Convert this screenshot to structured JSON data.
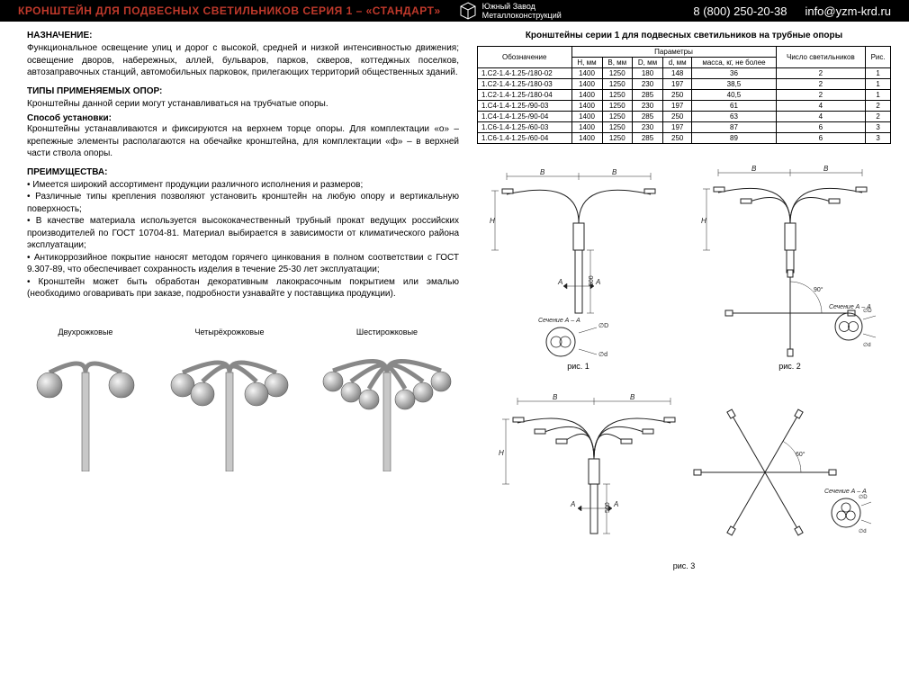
{
  "header": {
    "title": "КРОНШТЕЙН ДЛЯ ПОДВЕСНЫХ СВЕТИЛЬНИКОВ СЕРИЯ 1 – «СТАНДАРТ»",
    "company_line1": "Южный Завод",
    "company_line2": "Металлоконструкций",
    "phone": "8 (800) 250-20-38",
    "email": "info@yzm-krd.ru"
  },
  "purpose": {
    "heading": "НАЗНАЧЕНИЕ:",
    "text": "Функциональное освещение улиц и дорог с высокой, средней и низкой интенсивностью движения; освещение дворов, набережных, аллей, бульваров, парков, скверов, коттеджных поселков, автозаправочных станций, автомобильных парковок, прилегающих территорий общественных зданий."
  },
  "types": {
    "heading": "ТИПЫ ПРИМЕНЯЕМЫХ ОПОР:",
    "text": "Кронштейны данной серии могут устанавливаться на трубчатые опоры.",
    "sub_heading": "Способ установки:",
    "sub_text": "Кронштейны устанавливаются и фиксируются на верхнем торце опоры. Для комплектации «о» – крепежные элементы располагаются на обечайке кронштейна, для комплектации «ф» – в верхней части ствола опоры."
  },
  "advantages": {
    "heading": "ПРЕИМУЩЕСТВА:",
    "items": [
      "• Имеется широкий ассортимент продукции различного исполнения и размеров;",
      "• Различные типы крепления позволяют установить кронштейн на любую опору и вертикальную поверхность;",
      "• В качестве материала используется высококачественный трубный прокат ведущих российских производителей по ГОСТ 10704-81. Материал выбирается в зависимости от климатического района эксплуатации;",
      "• Антикоррозийное покрытие наносят методом горячего цинкования в полном соответствии с ГОСТ 9.307-89, что обеспечивает сохранность изделия в течение 25-30 лет эксплуатации;",
      "• Кронштейн может быть обработан декоративным лакокрасочным покрытием или эмалью (необходимо оговаривать при заказе, подробности узнавайте у поставщика продукции)."
    ]
  },
  "illustrations": {
    "labels": [
      "Двухрожковые",
      "Четырёхрожковые",
      "Шестирожковые"
    ]
  },
  "table": {
    "title": "Кронштейны серии 1 для подвесных светильников на трубные опоры",
    "headers": {
      "code": "Обозначение",
      "params": "Параметры",
      "h": "H, мм",
      "b": "B, мм",
      "D": "D, мм",
      "d": "d, мм",
      "mass": "масса, кг, не более",
      "lamps": "Число светильников",
      "fig": "Рис."
    },
    "rows": [
      [
        "1.C2-1.4-1.25-/180-02",
        "1400",
        "1250",
        "180",
        "148",
        "36",
        "2",
        "1"
      ],
      [
        "1.C2-1.4-1.25-/180-03",
        "1400",
        "1250",
        "230",
        "197",
        "38,5",
        "2",
        "1"
      ],
      [
        "1.C2-1.4-1.25-/180-04",
        "1400",
        "1250",
        "285",
        "250",
        "40,5",
        "2",
        "1"
      ],
      [
        "1.C4-1.4-1.25-/90-03",
        "1400",
        "1250",
        "230",
        "197",
        "61",
        "4",
        "2"
      ],
      [
        "1.C4-1.4-1.25-/90-04",
        "1400",
        "1250",
        "285",
        "250",
        "63",
        "4",
        "2"
      ],
      [
        "1.C6-1.4-1.25-/60-03",
        "1400",
        "1250",
        "230",
        "197",
        "87",
        "6",
        "3"
      ],
      [
        "1.C6-1.4-1.25-/60-04",
        "1400",
        "1250",
        "285",
        "250",
        "89",
        "6",
        "3"
      ]
    ]
  },
  "diagrams": {
    "fig1": "рис. 1",
    "fig2": "рис. 2",
    "fig3": "рис. 3",
    "section_label": "Сечение А – А",
    "dim_B": "B",
    "dim_H": "H",
    "dim_A": "A",
    "dim_500": "500",
    "dim_90": "90°",
    "dim_60": "60°",
    "dim_phi_D": "∅D",
    "dim_phi_d": "∅d"
  },
  "style": {
    "header_bg": "#000000",
    "accent": "#c0392b",
    "stroke": "#222222",
    "shade": "#bbbbbb",
    "stroke_width": 1,
    "thin_stroke": 0.6
  }
}
